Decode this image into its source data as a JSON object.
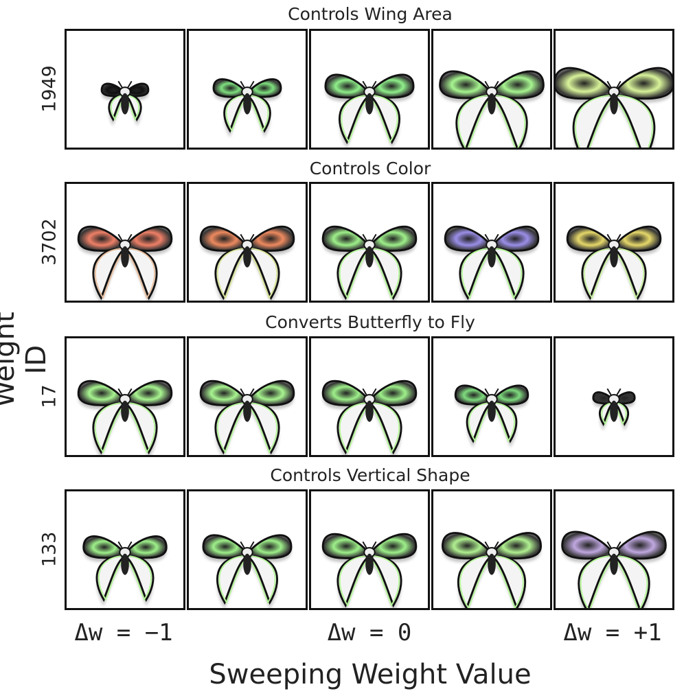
{
  "axes": {
    "y_label": "Weight ID",
    "x_label": "Sweeping Weight Value",
    "ticks": [
      "Δw = −1",
      "Δw = 0",
      "Δw = +1"
    ]
  },
  "rows": [
    {
      "title": "Controls Wing Area",
      "weight_id": "1949",
      "cells": [
        {
          "wing_scale": 0.45,
          "wing_color": "#111111",
          "stripe": "#b6f59a"
        },
        {
          "wing_scale": 0.65,
          "wing_color": "#7ee07e",
          "stripe": "#b6f59a"
        },
        {
          "wing_scale": 0.85,
          "wing_color": "#8ff08a",
          "stripe": "#b6f59a"
        },
        {
          "wing_scale": 1.0,
          "wing_color": "#a7f590",
          "stripe": "#b6f59a"
        },
        {
          "wing_scale": 1.15,
          "wing_color": "#d8f39a",
          "stripe": "#b6f59a"
        }
      ]
    },
    {
      "title": "Controls Color",
      "weight_id": "3702",
      "cells": [
        {
          "wing_scale": 0.9,
          "wing_color": "#ef8067",
          "stripe": "#e9c0a0"
        },
        {
          "wing_scale": 0.9,
          "wing_color": "#ee8a5f",
          "stripe": "#d9e59a"
        },
        {
          "wing_scale": 0.9,
          "wing_color": "#9ef08a",
          "stripe": "#b6f59a"
        },
        {
          "wing_scale": 0.9,
          "wing_color": "#9a8fe8",
          "stripe": "#b6f59a"
        },
        {
          "wing_scale": 0.9,
          "wing_color": "#e6d86a",
          "stripe": "#c9f0a0"
        }
      ]
    },
    {
      "title": "Converts Butterfly to Fly",
      "weight_id": "17",
      "cells": [
        {
          "wing_scale": 0.9,
          "wing_color": "#a8f590",
          "stripe": "#b6f59a"
        },
        {
          "wing_scale": 0.9,
          "wing_color": "#a8f590",
          "stripe": "#b6f59a"
        },
        {
          "wing_scale": 0.9,
          "wing_color": "#9ef08a",
          "stripe": "#b6f59a"
        },
        {
          "wing_scale": 0.7,
          "wing_color": "#7edc7e",
          "stripe": "#b6f59a"
        },
        {
          "wing_scale": 0.4,
          "wing_color": "#333333",
          "stripe": "#b6f59a"
        }
      ]
    },
    {
      "title": "Controls Vertical Shape",
      "weight_id": "133",
      "cells": [
        {
          "wing_scale": 0.8,
          "wing_color": "#9ef08a",
          "stripe": "#b6f59a"
        },
        {
          "wing_scale": 0.85,
          "wing_color": "#9ef08a",
          "stripe": "#b6f59a"
        },
        {
          "wing_scale": 0.9,
          "wing_color": "#9ef08a",
          "stripe": "#b6f59a"
        },
        {
          "wing_scale": 0.95,
          "wing_color": "#b0f090",
          "stripe": "#b6f59a"
        },
        {
          "wing_scale": 1.0,
          "wing_color": "#c0a8e0",
          "stripe": "#b6f59a"
        }
      ]
    }
  ]
}
